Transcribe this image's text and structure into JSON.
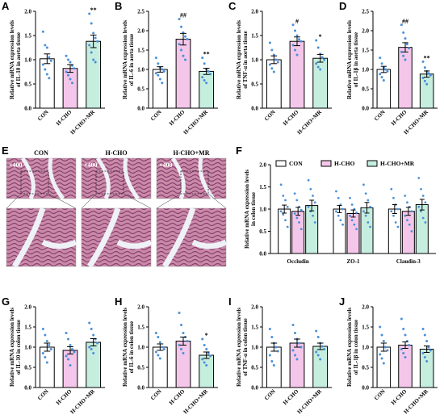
{
  "colors": {
    "con": "#ffffff",
    "hcho": "#f4c7ea",
    "hchomr": "#c6eedf",
    "point": "#4a90d9",
    "axis": "#000000"
  },
  "panels": [
    {
      "label": "A",
      "ylabel": [
        "Relative mRNA expression levels",
        "of IL-10 in aorta tissue"
      ],
      "ylim": [
        0,
        2.0
      ],
      "ticks": [
        "0.0",
        "0.5",
        "1.0",
        "1.5",
        "2.0"
      ]
    },
    {
      "label": "B",
      "ylabel": [
        "Relative mRNA expression levels",
        "of IL-6 in aorta tissue"
      ],
      "ylim": [
        0,
        2.5
      ],
      "ticks": [
        "0.0",
        "0.5",
        "1.0",
        "1.5",
        "2.0",
        "2.5"
      ]
    },
    {
      "label": "C",
      "ylabel": [
        "Relative mRNA expression levels",
        "of TNF-α in aorta tissue"
      ],
      "ylim": [
        0,
        2.0
      ],
      "ticks": [
        "0.0",
        "0.5",
        "1.0",
        "1.5",
        "2.0"
      ]
    },
    {
      "label": "D",
      "ylabel": [
        "Relative mRNA expression levels",
        "of IL-1β in aorta tissue"
      ],
      "ylim": [
        0,
        2.5
      ],
      "ticks": [
        "0.0",
        "0.5",
        "1.0",
        "1.5",
        "2.0",
        "2.5"
      ]
    },
    {
      "label": "G",
      "ylabel": [
        "Relative mRNA expression levels",
        "of IL-10 in colon tissue"
      ],
      "ylim": [
        0,
        2.0
      ],
      "ticks": [
        "0.0",
        "0.5",
        "1.0",
        "1.5",
        "2.0"
      ]
    },
    {
      "label": "H",
      "ylabel": [
        "Relative mRNA expression levels",
        "of IL-6 in colon tissue"
      ],
      "ylim": [
        0,
        2.0
      ],
      "ticks": [
        "0.0",
        "0.5",
        "1.0",
        "1.5",
        "2.0"
      ]
    },
    {
      "label": "I",
      "ylabel": [
        "Relative mRNA expression levels",
        "of TNF-α in colon tissue"
      ],
      "ylim": [
        0,
        2.0
      ],
      "ticks": [
        "0.0",
        "0.5",
        "1.0",
        "1.5",
        "2.0"
      ]
    },
    {
      "label": "J",
      "ylabel": [
        "Relative mRNA expression levels",
        "of IL-1β in colon tissue"
      ],
      "ylim": [
        0,
        2.0
      ],
      "ticks": [
        "0.0",
        "0.5",
        "1.0",
        "1.5",
        "2.0"
      ]
    }
  ],
  "panelF": {
    "label": "F",
    "ylabel": [
      "Relative mRNA expression levels",
      "in colon tissue"
    ],
    "ylim": [
      0,
      2.0
    ],
    "ticks": [
      "0.0",
      "0.5",
      "1.0",
      "1.5",
      "2.0"
    ],
    "legend": [
      "CON",
      "H-CHO",
      "H-CHO+MR"
    ],
    "groups": [
      "Occludin",
      "ZO-1",
      "Claudin-3"
    ]
  },
  "panelE": {
    "label": "E",
    "titles": [
      "CON",
      "H-CHO",
      "H-CHO+MR"
    ],
    "magnification": "×400"
  },
  "chart_data": [
    {
      "type": "bar",
      "panel": "A",
      "categories": [
        "CON",
        "H-CHO",
        "H-CHO+MR"
      ],
      "values": [
        1.02,
        0.82,
        1.38
      ],
      "errors": [
        0.1,
        0.08,
        0.13
      ],
      "significance": [
        "",
        "",
        "**"
      ],
      "points": [
        [
          1.58,
          1.3,
          1.25,
          1.05,
          0.98,
          0.9,
          0.8,
          0.7,
          0.62
        ],
        [
          1.08,
          1.0,
          0.95,
          0.88,
          0.82,
          0.75,
          0.68,
          0.6,
          0.52
        ],
        [
          1.95,
          1.75,
          1.55,
          1.45,
          1.38,
          1.3,
          1.15,
          1.0,
          0.95
        ]
      ]
    },
    {
      "type": "bar",
      "panel": "B",
      "categories": [
        "CON",
        "H-CHO",
        "H-CHO+MR"
      ],
      "values": [
        1.0,
        1.78,
        0.95
      ],
      "errors": [
        0.07,
        0.15,
        0.08
      ],
      "significance": [
        "",
        "##",
        "**"
      ],
      "points": [
        [
          1.3,
          1.15,
          1.05,
          1.0,
          0.95,
          0.9,
          0.85,
          0.75,
          0.65
        ],
        [
          2.3,
          2.1,
          1.95,
          1.85,
          1.78,
          1.65,
          1.5,
          1.35,
          1.25
        ],
        [
          1.3,
          1.15,
          1.0,
          0.95,
          0.88,
          0.8,
          0.72,
          0.65
        ]
      ]
    },
    {
      "type": "bar",
      "panel": "C",
      "categories": [
        "CON",
        "H-CHO",
        "H-CHO+MR"
      ],
      "values": [
        1.0,
        1.38,
        1.03
      ],
      "errors": [
        0.08,
        0.09,
        0.08
      ],
      "significance": [
        "",
        "#",
        "*"
      ],
      "points": [
        [
          1.35,
          1.2,
          1.1,
          1.0,
          0.95,
          0.9,
          0.82,
          0.75
        ],
        [
          1.72,
          1.6,
          1.5,
          1.42,
          1.38,
          1.3,
          1.2,
          1.1
        ],
        [
          1.4,
          1.25,
          1.12,
          1.05,
          1.0,
          0.92,
          0.85,
          0.8
        ]
      ]
    },
    {
      "type": "bar",
      "panel": "D",
      "categories": [
        "CON",
        "H-CHO",
        "H-CHO+MR"
      ],
      "values": [
        1.0,
        1.57,
        0.88
      ],
      "errors": [
        0.08,
        0.12,
        0.08
      ],
      "significance": [
        "",
        "##",
        "**"
      ],
      "points": [
        [
          1.3,
          1.15,
          1.05,
          1.0,
          0.95,
          0.88,
          0.8,
          0.72
        ],
        [
          2.15,
          1.95,
          1.8,
          1.65,
          1.55,
          1.45,
          1.35,
          1.25
        ],
        [
          1.2,
          1.05,
          0.95,
          0.9,
          0.85,
          0.78,
          0.7,
          0.62
        ]
      ]
    },
    {
      "type": "bar",
      "panel": "F",
      "groups": [
        "Occludin",
        "ZO-1",
        "Claudin-3"
      ],
      "series": [
        {
          "name": "CON",
          "values": [
            1.0,
            1.0,
            1.0
          ],
          "errors": [
            0.09,
            0.08,
            0.1
          ]
        },
        {
          "name": "H-CHO",
          "values": [
            0.95,
            0.9,
            0.95
          ],
          "errors": [
            0.09,
            0.08,
            0.09
          ]
        },
        {
          "name": "H-CHO+MR",
          "values": [
            1.08,
            1.03,
            1.1
          ],
          "errors": [
            0.12,
            0.12,
            0.12
          ]
        }
      ],
      "points": [
        [
          [
            1.55,
            1.3,
            1.2,
            1.05,
            0.95,
            0.88,
            0.75,
            0.6
          ],
          [
            1.35,
            1.2,
            1.05,
            0.98,
            0.9,
            0.8,
            0.7,
            0.55
          ],
          [
            1.65,
            1.45,
            1.3,
            1.15,
            1.05,
            0.95,
            0.85,
            0.7
          ]
        ],
        [
          [
            1.4,
            1.25,
            1.1,
            1.0,
            0.95,
            0.85,
            0.75,
            0.65
          ],
          [
            1.25,
            1.1,
            1.0,
            0.92,
            0.85,
            0.75,
            0.65,
            0.55
          ],
          [
            1.55,
            1.35,
            1.2,
            1.05,
            0.95,
            0.85,
            0.7,
            0.6
          ]
        ],
        [
          [
            1.45,
            1.25,
            1.1,
            1.0,
            0.95,
            0.85,
            0.7,
            0.6
          ],
          [
            1.3,
            1.15,
            1.05,
            0.95,
            0.85,
            0.75,
            0.65,
            0.5
          ],
          [
            1.7,
            1.45,
            1.3,
            1.15,
            1.05,
            0.95,
            0.8,
            0.7
          ]
        ]
      ]
    },
    {
      "type": "bar",
      "panel": "G",
      "categories": [
        "CON",
        "H-CHO",
        "H-CHO+MR"
      ],
      "values": [
        1.0,
        0.92,
        1.12
      ],
      "errors": [
        0.1,
        0.09,
        0.09
      ],
      "significance": [
        "",
        "",
        ""
      ],
      "points": [
        [
          1.45,
          1.3,
          1.15,
          1.05,
          0.95,
          0.85,
          0.75,
          0.62
        ],
        [
          1.35,
          1.2,
          1.05,
          0.95,
          0.88,
          0.78,
          0.7,
          0.55
        ],
        [
          1.6,
          1.45,
          1.3,
          1.2,
          1.1,
          1.0,
          0.95,
          0.85
        ]
      ]
    },
    {
      "type": "bar",
      "panel": "H",
      "categories": [
        "CON",
        "H-CHO",
        "H-CHO+MR"
      ],
      "values": [
        1.0,
        1.15,
        0.8
      ],
      "errors": [
        0.08,
        0.1,
        0.08
      ],
      "significance": [
        "",
        "",
        "*"
      ],
      "points": [
        [
          1.35,
          1.25,
          1.12,
          1.0,
          0.95,
          0.88,
          0.8,
          0.72
        ],
        [
          1.85,
          1.55,
          1.35,
          1.25,
          1.15,
          1.05,
          0.95,
          0.85
        ],
        [
          1.2,
          1.05,
          0.95,
          0.85,
          0.78,
          0.7,
          0.62,
          0.55
        ]
      ]
    },
    {
      "type": "bar",
      "panel": "I",
      "categories": [
        "CON",
        "H-CHO",
        "H-CHO+MR"
      ],
      "values": [
        1.0,
        1.1,
        1.02
      ],
      "errors": [
        0.1,
        0.1,
        0.08
      ],
      "significance": [
        "",
        "",
        ""
      ],
      "points": [
        [
          1.45,
          1.25,
          1.1,
          1.0,
          0.9,
          0.8,
          0.65,
          0.55
        ],
        [
          1.55,
          1.35,
          1.2,
          1.1,
          1.0,
          0.92,
          0.8,
          0.7
        ],
        [
          1.4,
          1.25,
          1.1,
          1.02,
          0.95,
          0.88,
          0.8,
          0.7
        ]
      ]
    },
    {
      "type": "bar",
      "panel": "J",
      "categories": [
        "CON",
        "H-CHO",
        "H-CHO+MR"
      ],
      "values": [
        1.0,
        1.05,
        0.95
      ],
      "errors": [
        0.1,
        0.08,
        0.08
      ],
      "significance": [
        "",
        "",
        ""
      ],
      "points": [
        [
          1.5,
          1.3,
          1.15,
          1.0,
          0.92,
          0.82,
          0.72,
          0.6
        ],
        [
          1.7,
          1.45,
          1.3,
          1.15,
          1.05,
          0.95,
          0.85,
          0.75
        ],
        [
          1.45,
          1.3,
          1.15,
          1.0,
          0.92,
          0.85,
          0.75,
          0.65
        ]
      ]
    }
  ]
}
